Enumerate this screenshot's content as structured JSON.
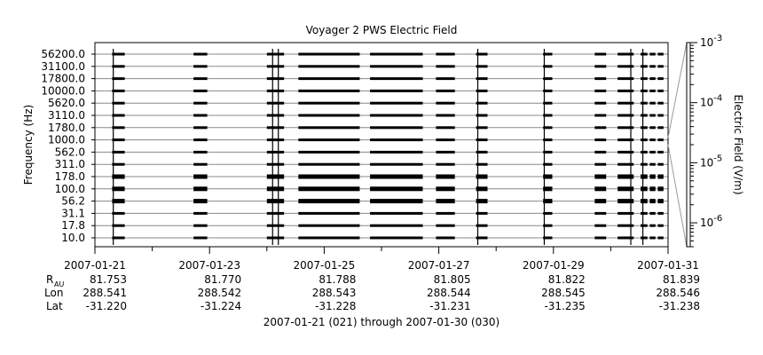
{
  "chart_data": {
    "type": "heatmap",
    "title": "Voyager 2 PWS Electric Field",
    "ylabel": "Frequency (Hz)",
    "frequency_channels": [
      "10.0",
      "17.8",
      "31.1",
      "56.2",
      "100.0",
      "178.0",
      "311.0",
      "562.0",
      "1000.0",
      "1780.0",
      "3110.0",
      "5620.0",
      "10000.0",
      "17800.0",
      "31100.0",
      "56200.0"
    ],
    "x_axis": {
      "range": [
        "2007-01-21",
        "2007-01-31"
      ],
      "tick_labels": [
        "2007-01-21",
        "2007-01-23",
        "2007-01-25",
        "2007-01-27",
        "2007-01-29",
        "2007-01-31"
      ]
    },
    "ephemeris": {
      "row_labels": {
        "r": "R",
        "r_sub": "AU",
        "lon": "Lon",
        "lat": "Lat"
      },
      "r": [
        "81.753",
        "81.770",
        "81.788",
        "81.805",
        "81.822",
        "81.839"
      ],
      "lon": [
        "288.541",
        "288.542",
        "288.543",
        "288.544",
        "288.545",
        "288.546"
      ],
      "lat": [
        "-31.220",
        "-31.224",
        "-31.228",
        "-31.231",
        "-31.235",
        "-31.238"
      ]
    },
    "footer": "2007-01-21 (021) through 2007-01-30 (030)",
    "colorbar": {
      "label": "Electric Field (V/m)",
      "scale": "log",
      "range": [
        4e-07,
        0.001
      ],
      "ticks": [
        {
          "base": "10",
          "exp": "-3",
          "value": 0.001
        },
        {
          "base": "10",
          "exp": "-4",
          "value": 0.0001
        },
        {
          "base": "10",
          "exp": "-5",
          "value": 1e-05
        },
        {
          "base": "10",
          "exp": "-6",
          "value": 1e-06
        }
      ]
    },
    "data_segments": [
      {
        "start_day": 0.3,
        "end_day": 0.52,
        "spike_day": 0.32
      },
      {
        "start_day": 1.72,
        "end_day": 1.96
      },
      {
        "start_day": 3.0,
        "end_day": 3.3,
        "spike_day": 3.1,
        "spike_day_2": 3.2
      },
      {
        "start_day": 3.55,
        "end_day": 4.62
      },
      {
        "start_day": 4.8,
        "end_day": 5.72
      },
      {
        "start_day": 5.95,
        "end_day": 6.28
      },
      {
        "start_day": 6.65,
        "end_day": 6.85,
        "spike_day": 6.68
      },
      {
        "start_day": 7.82,
        "end_day": 7.98,
        "spike_day": 7.84
      },
      {
        "start_day": 8.72,
        "end_day": 8.92
      },
      {
        "start_day": 9.12,
        "end_day": 9.4,
        "spike_day": 9.35
      },
      {
        "start_day": 9.52,
        "end_day": 9.64,
        "spike_day": 9.56
      },
      {
        "start_day": 9.68,
        "end_day": 9.78
      },
      {
        "start_day": 9.82,
        "end_day": 9.92
      }
    ],
    "colors": {
      "axes": "#000000",
      "grid": "#888888",
      "data": "#000000",
      "colorbar": "#ffffff"
    }
  }
}
